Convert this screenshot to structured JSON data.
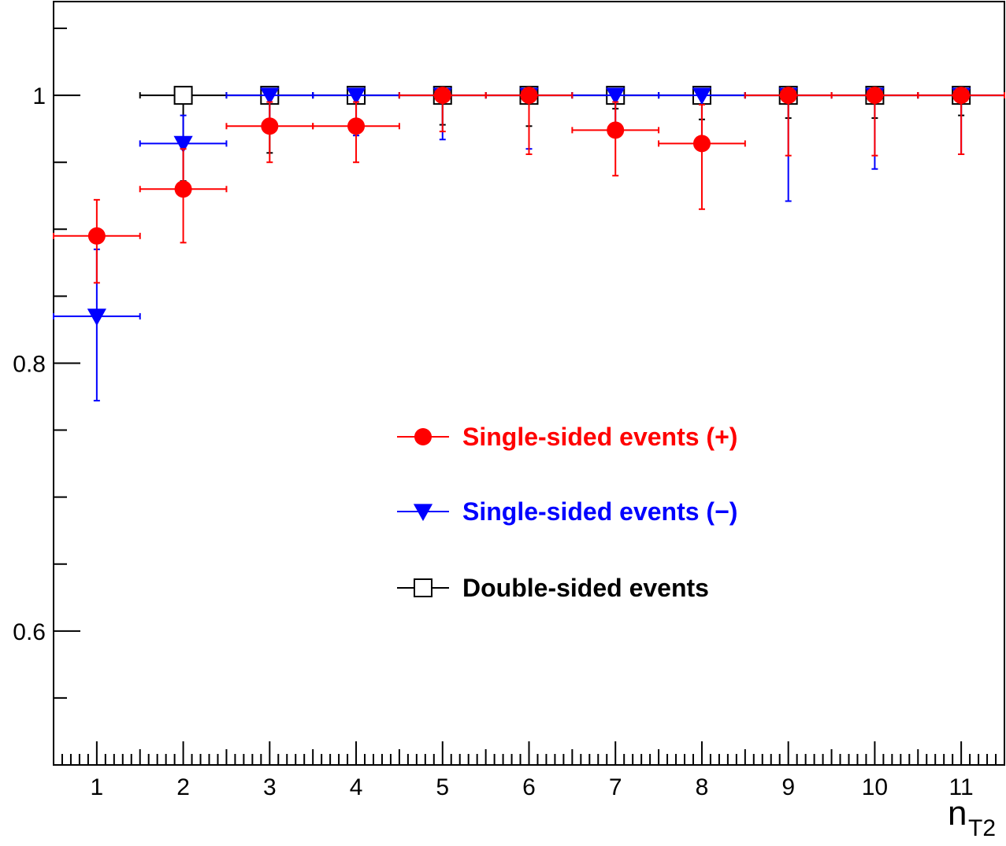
{
  "chart_data": {
    "type": "scatter",
    "xlabel": "n",
    "xlabel_sub": "T2",
    "ylabel": "",
    "xlim": [
      0.5,
      11.5
    ],
    "ylim": [
      0.5,
      1.07
    ],
    "x_ticks": [
      "1",
      "2",
      "3",
      "4",
      "5",
      "6",
      "7",
      "8",
      "9",
      "10",
      "11"
    ],
    "y_ticks": [
      "0.6",
      "0.8",
      "1"
    ],
    "grid": false,
    "legend_position": "center",
    "series": [
      {
        "name": "Single-sided events (+)",
        "color": "#ff0000",
        "marker": "filled-circle",
        "x_err": 0.5,
        "points": [
          {
            "x": 1,
            "y": 0.895,
            "ylo": 0.86,
            "yhi": 0.922
          },
          {
            "x": 2,
            "y": 0.93,
            "ylo": 0.89,
            "yhi": 0.96
          },
          {
            "x": 3,
            "y": 0.977,
            "ylo": 0.95,
            "yhi": 0.995
          },
          {
            "x": 4,
            "y": 0.977,
            "ylo": 0.95,
            "yhi": 0.995
          },
          {
            "x": 5,
            "y": 1.0,
            "ylo": 0.973,
            "yhi": 1.0
          },
          {
            "x": 6,
            "y": 1.0,
            "ylo": 0.956,
            "yhi": 1.0
          },
          {
            "x": 7,
            "y": 0.974,
            "ylo": 0.94,
            "yhi": 0.995
          },
          {
            "x": 8,
            "y": 0.964,
            "ylo": 0.915,
            "yhi": 0.993
          },
          {
            "x": 9,
            "y": 1.0,
            "ylo": 0.955,
            "yhi": 1.0
          },
          {
            "x": 10,
            "y": 1.0,
            "ylo": 0.955,
            "yhi": 1.0
          },
          {
            "x": 11,
            "y": 1.0,
            "ylo": 0.956,
            "yhi": 1.0
          }
        ]
      },
      {
        "name": "Single-sided events (−)",
        "color": "#0000ff",
        "marker": "filled-triangle-down",
        "x_err": 0.5,
        "points": [
          {
            "x": 1,
            "y": 0.835,
            "ylo": 0.772,
            "yhi": 0.885
          },
          {
            "x": 2,
            "y": 0.964,
            "ylo": 0.935,
            "yhi": 0.985
          },
          {
            "x": 3,
            "y": 1.0,
            "ylo": 0.976,
            "yhi": 1.0
          },
          {
            "x": 4,
            "y": 1.0,
            "ylo": 0.97,
            "yhi": 1.0
          },
          {
            "x": 5,
            "y": 1.0,
            "ylo": 0.967,
            "yhi": 1.0
          },
          {
            "x": 6,
            "y": 1.0,
            "ylo": 0.96,
            "yhi": 1.0
          },
          {
            "x": 7,
            "y": 1.0,
            "ylo": 0.972,
            "yhi": 1.0
          },
          {
            "x": 8,
            "y": 1.0,
            "ylo": 0.96,
            "yhi": 1.0
          },
          {
            "x": 9,
            "y": 1.0,
            "ylo": 0.921,
            "yhi": 1.0
          },
          {
            "x": 10,
            "y": 1.0,
            "ylo": 0.945,
            "yhi": 1.0
          },
          {
            "x": 11,
            "y": 1.0,
            "ylo": 0.956,
            "yhi": 1.0
          }
        ]
      },
      {
        "name": "Double-sided events",
        "color": "#000000",
        "marker": "open-square",
        "x_err": 0.5,
        "points": [
          {
            "x": 2,
            "y": 1.0,
            "ylo": 0.936,
            "yhi": 1.0
          },
          {
            "x": 3,
            "y": 1.0,
            "ylo": 0.957,
            "yhi": 1.0
          },
          {
            "x": 4,
            "y": 1.0,
            "ylo": 0.975,
            "yhi": 1.0
          },
          {
            "x": 5,
            "y": 1.0,
            "ylo": 0.978,
            "yhi": 1.0
          },
          {
            "x": 6,
            "y": 1.0,
            "ylo": 0.977,
            "yhi": 1.0
          },
          {
            "x": 7,
            "y": 1.0,
            "ylo": 0.99,
            "yhi": 1.0
          },
          {
            "x": 8,
            "y": 1.0,
            "ylo": 0.982,
            "yhi": 1.0
          },
          {
            "x": 9,
            "y": 1.0,
            "ylo": 0.983,
            "yhi": 1.0
          },
          {
            "x": 10,
            "y": 1.0,
            "ylo": 0.983,
            "yhi": 1.0
          },
          {
            "x": 11,
            "y": 1.0,
            "ylo": 0.985,
            "yhi": 1.0
          }
        ]
      }
    ]
  }
}
